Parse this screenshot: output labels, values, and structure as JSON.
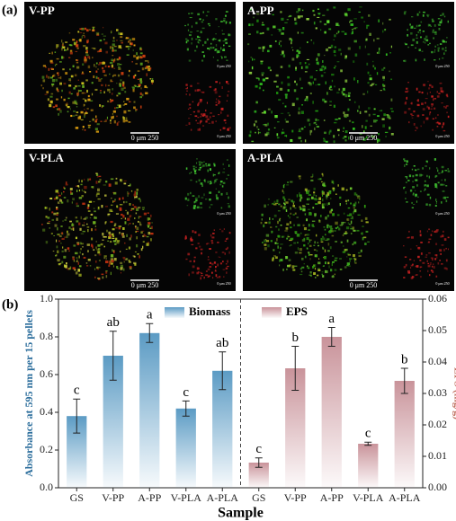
{
  "panel_labels": [
    "(a)",
    "(b)"
  ],
  "images": [
    {
      "label": "V-PP",
      "scale": "0 μm 250",
      "inset_scale": "0 μm 250"
    },
    {
      "label": "A-PP",
      "scale": "0 μm 250",
      "inset_scale": "0 μm 250"
    },
    {
      "label": "V-PLA",
      "scale": "0 μm 250",
      "inset_scale": "0 μm 250"
    },
    {
      "label": "A-PLA",
      "scale": "0 μm 250",
      "inset_scale": "0 μm 250"
    }
  ],
  "chart_data": {
    "type": "bar",
    "xlabel": "Sample",
    "ylabel": "Absorbance at 595 nm per 15 pellets",
    "y2label": "EPS (mg/g)",
    "categories": [
      "GS",
      "V-PP",
      "A-PP",
      "V-PLA",
      "A-PLA",
      "GS",
      "V-PP",
      "A-PP",
      "V-PLA",
      "A-PLA"
    ],
    "ylim": [
      0,
      1.0
    ],
    "yticks": [
      {
        "value": 0,
        "label": "0.0"
      },
      {
        "value": 0.2,
        "label": "0.2"
      },
      {
        "value": 0.4,
        "label": "0.4"
      },
      {
        "value": 0.6,
        "label": "0.6"
      },
      {
        "value": 0.8,
        "label": "0.8"
      },
      {
        "value": 1.0,
        "label": "1.0"
      }
    ],
    "y2lim": [
      0,
      0.06
    ],
    "y2ticks": [
      {
        "value": 0,
        "label": "0.00"
      },
      {
        "value": 0.01,
        "label": "0.01"
      },
      {
        "value": 0.02,
        "label": "0.02"
      },
      {
        "value": 0.03,
        "label": "0.03"
      },
      {
        "value": 0.04,
        "label": "0.04"
      },
      {
        "value": 0.05,
        "label": "0.05"
      },
      {
        "value": 0.06,
        "label": "0.06"
      }
    ],
    "legend": "top",
    "series": [
      {
        "name": "Biomass",
        "color": "#5b9bc4",
        "axis": "y",
        "values": [
          0.38,
          0.7,
          0.82,
          0.42,
          0.62,
          null,
          null,
          null,
          null,
          null
        ],
        "errors": [
          0.09,
          0.13,
          0.05,
          0.04,
          0.1,
          null,
          null,
          null,
          null,
          null
        ],
        "letters": [
          "c",
          "ab",
          "a",
          "c",
          "ab",
          null,
          null,
          null,
          null,
          null
        ]
      },
      {
        "name": "EPS",
        "color": "#c9939a",
        "axis": "y2",
        "values": [
          null,
          null,
          null,
          null,
          null,
          0.008,
          0.038,
          0.048,
          0.014,
          0.034
        ],
        "errors": [
          null,
          null,
          null,
          null,
          null,
          0.0015,
          0.007,
          0.003,
          0.0005,
          0.004
        ],
        "letters": [
          null,
          null,
          null,
          null,
          null,
          "c",
          "b",
          "a",
          "c",
          "b"
        ]
      }
    ]
  }
}
